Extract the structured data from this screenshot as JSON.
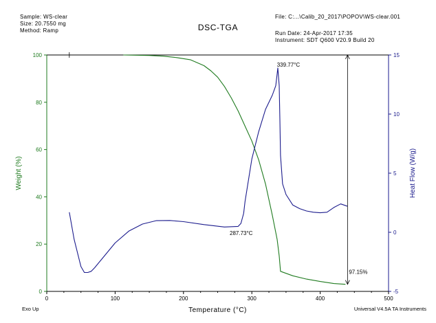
{
  "header": {
    "sample": "Sample: WS-clear",
    "size": "Size: 20.7550 mg",
    "method": "Method: Ramp",
    "file": "File: C:...\\Calib_20_2017\\POPOV\\WS-clear.001",
    "run_date": "Run Date: 24-Apr-2017 17:35",
    "instrument": "Instrument: SDT Q600 V20.9 Build 20"
  },
  "footer": {
    "left": "Exo Up",
    "right": "Universal V4.5A TA Instruments"
  },
  "colors": {
    "weight": "#1e7a1e",
    "heatflow": "#1a1a8c",
    "axis": "#000000"
  },
  "chart_data": {
    "type": "line",
    "title": "DSC-TGA",
    "xlabel": "Temperature (°C)",
    "ylabel_left": "Weight (%)",
    "ylabel_right": "Heat Flow (W/g)",
    "xlim": [
      0,
      500
    ],
    "ylim_left": [
      0,
      100
    ],
    "ylim_right": [
      -5,
      15
    ],
    "x_ticks": [
      "0",
      "100",
      "200",
      "300",
      "400",
      "500"
    ],
    "y_left_ticks": [
      "0",
      "20",
      "40",
      "60",
      "80",
      "100"
    ],
    "y_right_ticks": [
      "-5",
      "0",
      "5",
      "10",
      "15"
    ],
    "series": [
      {
        "name": "Weight (%)",
        "axis": "left",
        "x": [
          112,
          150,
          170,
          190,
          210,
          230,
          240,
          250,
          260,
          270,
          280,
          290,
          300,
          310,
          320,
          330,
          337,
          340,
          342,
          360,
          380,
          400,
          420,
          437
        ],
        "y": [
          100,
          99.8,
          99.5,
          98.9,
          98,
          95.5,
          93.3,
          90.6,
          86.7,
          81.8,
          76.3,
          69.9,
          63.6,
          55.7,
          45.4,
          32.2,
          22,
          15,
          8.5,
          6.6,
          5.2,
          4.2,
          3.3,
          3
        ]
      },
      {
        "name": "Heat Flow (W/g)",
        "axis": "right",
        "x": [
          33,
          40,
          50,
          55,
          60,
          65,
          70,
          80,
          90,
          100,
          120,
          140,
          160,
          180,
          200,
          230,
          260,
          280,
          284,
          288,
          290,
          300,
          310,
          320,
          325,
          330,
          335,
          338,
          340,
          341,
          342,
          345,
          350,
          360,
          370,
          380,
          390,
          400,
          410,
          420,
          430,
          440
        ],
        "y": [
          1.7,
          -0.6,
          -2.9,
          -3.4,
          -3.4,
          -3.3,
          -3.0,
          -2.3,
          -1.6,
          -0.9,
          0.1,
          0.7,
          0.98,
          1.0,
          0.9,
          0.65,
          0.45,
          0.5,
          0.75,
          1.6,
          2.6,
          6.2,
          8.5,
          10.4,
          11.0,
          11.6,
          12.4,
          13.9,
          12.4,
          9.5,
          6.5,
          4.1,
          3.2,
          2.3,
          2.0,
          1.8,
          1.7,
          1.65,
          1.7,
          2.1,
          2.4,
          2.2
        ]
      }
    ],
    "annotations": [
      {
        "text": "339.77°C",
        "x": 339.77,
        "y": 13.9,
        "axis": "right"
      },
      {
        "text": "287.73°C",
        "x": 287.73,
        "y": 0.7,
        "axis": "right"
      },
      {
        "text": "97.15%",
        "x": 440,
        "y": 8,
        "axis": "left"
      }
    ],
    "weight_step": {
      "x": 440,
      "y_top": 100,
      "y_bottom": 3
    },
    "grid": false,
    "legend": "none"
  }
}
